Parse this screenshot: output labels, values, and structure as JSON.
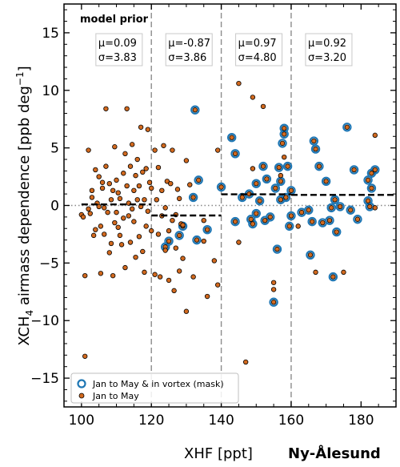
{
  "chart_data": {
    "type": "scatter",
    "title": "model prior",
    "station_label": "Ny-Ålesund",
    "xlabel": "XHF [ppt]",
    "ylabel_parts": [
      "XCH",
      "4",
      " airmass dependence [ppb deg",
      "−1",
      "]"
    ],
    "xlim": [
      95,
      190
    ],
    "ylim": [
      -17.5,
      17.5
    ],
    "xticks": [
      100,
      120,
      140,
      160,
      180
    ],
    "yticks": [
      -15,
      -10,
      -5,
      0,
      5,
      10,
      15
    ],
    "ytick_labels": [
      "−15",
      "−10",
      "−5",
      "0",
      "5",
      "10",
      "15"
    ],
    "bin_edges": [
      120,
      140,
      160
    ],
    "bins": [
      {
        "x_range": [
          100,
          120
        ],
        "mean": 0.09,
        "mu_label": "μ=0.09",
        "sigma_label": "σ=3.83"
      },
      {
        "x_range": [
          120,
          140
        ],
        "mean": -0.87,
        "mu_label": "μ=-0.87",
        "sigma_label": "σ=3.86"
      },
      {
        "x_range": [
          140,
          160
        ],
        "mean": 0.97,
        "mu_label": "μ=0.97",
        "sigma_label": "σ=4.80"
      },
      {
        "x_range": [
          160,
          190
        ],
        "mean": 0.92,
        "mu_label": "μ=0.92",
        "sigma_label": "σ=3.20"
      }
    ],
    "legend": {
      "placement": "lower-left",
      "entries": [
        {
          "label": "Jan to May & in vortex (mask)",
          "marker": "ring",
          "color": "#1f77b4"
        },
        {
          "label": "Jan to May",
          "marker": "dot",
          "color": "#d2691e"
        }
      ]
    },
    "colors": {
      "orange": "#d2691e",
      "blue": "#1f77b4",
      "edge": "#000000"
    },
    "series": [
      {
        "name": "Jan to May",
        "points": [
          [
            100,
            -0.8
          ],
          [
            100.5,
            -1.0
          ],
          [
            101,
            -6.1
          ],
          [
            101,
            -13.1
          ],
          [
            102,
            4.8
          ],
          [
            102,
            -0.3
          ],
          [
            102.5,
            -0.7
          ],
          [
            103,
            1.3
          ],
          [
            103,
            0.7
          ],
          [
            103.5,
            -2.6
          ],
          [
            104,
            3.1
          ],
          [
            104,
            -2.1
          ],
          [
            104.5,
            0.2
          ],
          [
            105,
            2.5
          ],
          [
            105,
            -0.1
          ],
          [
            105.5,
            -1.8
          ],
          [
            105.5,
            -5.9
          ],
          [
            106,
            1.5
          ],
          [
            106,
            2.0
          ],
          [
            106.5,
            -0.2
          ],
          [
            106.5,
            -2.5
          ],
          [
            107,
            3.4
          ],
          [
            107,
            8.4
          ],
          [
            107.5,
            -0.6
          ],
          [
            108,
            1.9
          ],
          [
            108,
            -4.1
          ],
          [
            108.5,
            0.5
          ],
          [
            108.5,
            -3.3
          ],
          [
            109,
            1.3
          ],
          [
            109,
            -6.1
          ],
          [
            109.5,
            5.1
          ],
          [
            109.5,
            -1.5
          ],
          [
            110,
            2.2
          ],
          [
            110,
            -0.6
          ],
          [
            110.5,
            -1.9
          ],
          [
            110.5,
            1.1
          ],
          [
            111,
            -2.6
          ],
          [
            111,
            0.6
          ],
          [
            111.5,
            -3.4
          ],
          [
            112,
            2.8
          ],
          [
            112,
            -1.1
          ],
          [
            112.5,
            4.5
          ],
          [
            112.5,
            -5.4
          ],
          [
            113,
            8.4
          ],
          [
            113,
            1.7
          ],
          [
            113.5,
            0.2
          ],
          [
            113.5,
            -0.9
          ],
          [
            114,
            3.4
          ],
          [
            114,
            -3.2
          ],
          [
            114.5,
            5.3
          ],
          [
            114.5,
            -0.3
          ],
          [
            115,
            1.3
          ],
          [
            115,
            -1.4
          ],
          [
            115.5,
            -4.5
          ],
          [
            115.5,
            2.6
          ],
          [
            116,
            0.5
          ],
          [
            116,
            4.0
          ],
          [
            116.5,
            -2.7
          ],
          [
            116.5,
            1.7
          ],
          [
            117,
            6.8
          ],
          [
            117,
            -0.1
          ],
          [
            117.5,
            -4.0
          ],
          [
            117.5,
            2.9
          ],
          [
            118,
            -5.8
          ],
          [
            118,
            0.5
          ],
          [
            118.5,
            3.2
          ],
          [
            118.5,
            -1.8
          ],
          [
            119,
            6.6
          ],
          [
            119,
            -0.5
          ],
          [
            119.5,
            2.0
          ],
          [
            120,
            -2.2
          ],
          [
            120,
            1.5
          ],
          [
            121,
            4.8
          ],
          [
            121,
            -6.0
          ],
          [
            121.5,
            0.5
          ],
          [
            122,
            -2.5
          ],
          [
            122,
            3.3
          ],
          [
            122.5,
            -6.2
          ],
          [
            123,
            1.3
          ],
          [
            123,
            -0.9
          ],
          [
            123.5,
            5.2
          ],
          [
            124,
            -3.9
          ],
          [
            124,
            -0.2
          ],
          [
            124.5,
            2.1
          ],
          [
            125,
            -6.5
          ],
          [
            125,
            -2.2
          ],
          [
            125.5,
            1.9
          ],
          [
            126,
            -1.3
          ],
          [
            126,
            4.8
          ],
          [
            126.5,
            -7.4
          ],
          [
            127,
            -0.8
          ],
          [
            127,
            -3.7
          ],
          [
            127.5,
            1.4
          ],
          [
            128,
            -5.7
          ],
          [
            128,
            0.6
          ],
          [
            128.5,
            -1.6
          ],
          [
            129,
            -4.6
          ],
          [
            129,
            -1.7
          ],
          [
            130,
            -9.2
          ],
          [
            130,
            3.9
          ],
          [
            131,
            1.8
          ],
          [
            132,
            -6.2
          ],
          [
            135,
            -1.3
          ],
          [
            135,
            -3.1
          ],
          [
            136,
            -7.9
          ],
          [
            138,
            -4.8
          ],
          [
            139,
            -6.9
          ],
          [
            139,
            4.8
          ],
          [
            145,
            10.6
          ],
          [
            145,
            -3.2
          ],
          [
            147,
            -13.6
          ],
          [
            149,
            9.4
          ],
          [
            149,
            3.2
          ],
          [
            152,
            8.6
          ],
          [
            155,
            -6.7
          ],
          [
            155,
            -7.3
          ],
          [
            157,
            2.6
          ],
          [
            158,
            4.2
          ],
          [
            162,
            -1.8
          ],
          [
            167,
            -5.8
          ],
          [
            175,
            -5.8
          ],
          [
            184,
            6.1
          ],
          [
            184,
            -0.2
          ]
        ]
      },
      {
        "name": "Jan to May & in vortex (mask)",
        "points": [
          [
            124,
            -3.6
          ],
          [
            125,
            -3.1
          ],
          [
            128,
            -2.6
          ],
          [
            129,
            -1.8
          ],
          [
            132,
            0.7
          ],
          [
            132.5,
            8.3
          ],
          [
            133,
            -3.0
          ],
          [
            133.5,
            2.2
          ],
          [
            136,
            -2.1
          ],
          [
            140,
            1.6
          ],
          [
            143,
            5.9
          ],
          [
            144,
            4.5
          ],
          [
            144,
            -1.4
          ],
          [
            146,
            0.7
          ],
          [
            148,
            1.0
          ],
          [
            148.5,
            -1.2
          ],
          [
            149,
            -1.6
          ],
          [
            150,
            1.9
          ],
          [
            150,
            -0.7
          ],
          [
            151,
            0.4
          ],
          [
            152,
            3.4
          ],
          [
            152.5,
            -1.3
          ],
          [
            153,
            2.3
          ],
          [
            154,
            -1.0
          ],
          [
            155,
            -8.4
          ],
          [
            155.5,
            1.5
          ],
          [
            156,
            -3.8
          ],
          [
            156.5,
            3.3
          ],
          [
            157,
            2.1
          ],
          [
            157,
            0.5
          ],
          [
            157.5,
            5.4
          ],
          [
            158,
            6.7
          ],
          [
            158,
            6.2
          ],
          [
            158.5,
            0.7
          ],
          [
            159,
            3.4
          ],
          [
            159.5,
            -1.8
          ],
          [
            160,
            1.3
          ],
          [
            160,
            -0.9
          ],
          [
            163,
            -0.6
          ],
          [
            165,
            -0.4
          ],
          [
            165.5,
            -4.3
          ],
          [
            166,
            -1.4
          ],
          [
            166.5,
            5.6
          ],
          [
            167,
            4.9
          ],
          [
            168,
            3.4
          ],
          [
            169,
            -1.5
          ],
          [
            170,
            2.1
          ],
          [
            171,
            -1.3
          ],
          [
            171.5,
            -0.2
          ],
          [
            172,
            -6.2
          ],
          [
            172.5,
            0.5
          ],
          [
            173,
            -2.3
          ],
          [
            174,
            -0.1
          ],
          [
            176,
            6.8
          ],
          [
            177,
            -0.4
          ],
          [
            178,
            3.1
          ],
          [
            179,
            -1.2
          ],
          [
            182,
            2.2
          ],
          [
            182,
            0.4
          ],
          [
            182.5,
            -0.1
          ],
          [
            183,
            1.5
          ],
          [
            183,
            2.8
          ],
          [
            184,
            3.1
          ]
        ]
      }
    ]
  }
}
